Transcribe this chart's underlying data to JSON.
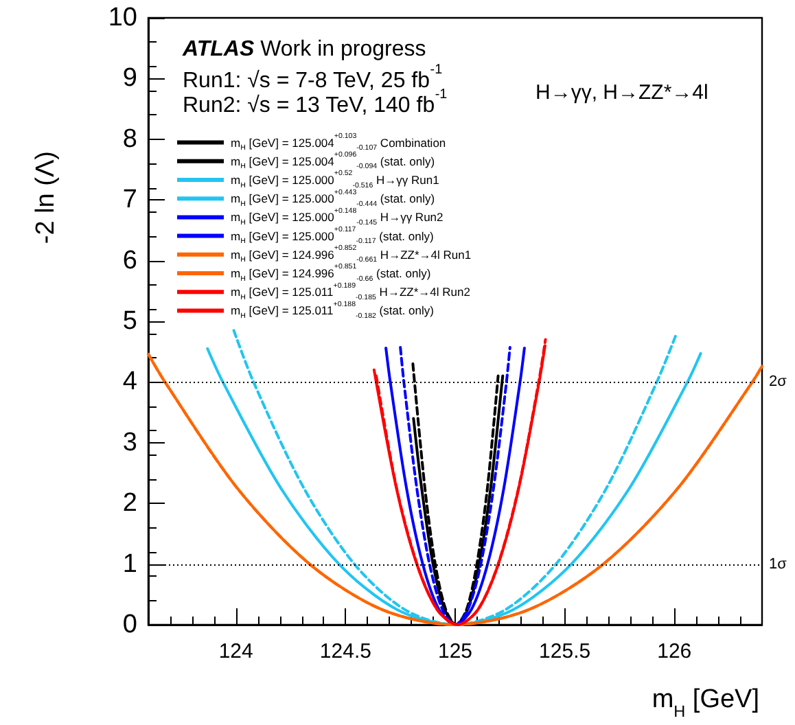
{
  "chart_data": {
    "type": "line",
    "xlabel": "m$_{H}$ [GeV]",
    "ylabel": "-2 ln (Λ)",
    "xlim": [
      123.6,
      126.4
    ],
    "ylim": [
      0,
      10
    ],
    "xticks": [
      124,
      124.5,
      125,
      125.5,
      126
    ],
    "yticks": [
      0,
      1,
      2,
      3,
      4,
      5,
      6,
      7,
      8,
      9,
      10
    ],
    "grid": false,
    "marker": "none",
    "legend": "top left",
    "annotations": [
      "ATLAS Work in progress",
      "Run1: √s = 7-8 TeV, 25 fb$^{-1}$",
      "Run2: √s = 13 TeV, 140 fb$^{-1}$",
      "H→γγ, H→ZZ*→4l"
    ],
    "ref_lines": [
      {
        "axis": "y",
        "value": 4,
        "label": "2σ",
        "color": "#000000",
        "line_style": "dotted"
      },
      {
        "axis": "y",
        "value": 1,
        "label": "1σ",
        "color": "#000000",
        "line_style": "dotted"
      }
    ],
    "series": [
      {
        "name": "m$_{H}$ [GeV] = 125.004$^{+0.103}$$_{-0.107}$ Combination",
        "color": "#000000",
        "line_style": "solid",
        "x": [
          124.81,
          124.847,
          124.899,
          124.952,
          125.004,
          125.057,
          125.109,
          125.162,
          125.214,
          125.217
        ],
        "values": [
          3.4,
          2.25,
          1,
          0.25,
          0,
          0.25,
          1,
          2.25,
          4,
          4.1
        ]
      },
      {
        "name": "m$_{H}$ [GeV] = 125.004$^{+0.096}$$_{-0.094}$ (stat. only)",
        "color": "#000000",
        "line_style": "dashed",
        "x": [
          124.807,
          124.862,
          124.909,
          124.957,
          125.004,
          125.052,
          125.099,
          125.147,
          125.196
        ],
        "values": [
          4.3,
          2.25,
          1,
          0.25,
          0,
          0.25,
          1,
          2.25,
          4.1
        ]
      },
      {
        "name": "m$_{H}$ [GeV] = 125.000$^{+0.52}$$_{-0.516}$ H→γγ Run1",
        "color": "#22c5f0",
        "line_style": "solid",
        "x": [
          123.87,
          123.94,
          124.205,
          124.47,
          124.735,
          125,
          125.265,
          125.53,
          125.795,
          126.06,
          126.12
        ],
        "values": [
          4.55,
          4,
          2.25,
          1,
          0.25,
          0,
          0.25,
          1,
          2.25,
          4,
          4.47
        ]
      },
      {
        "name": "m$_{H}$ [GeV] = 125.000$^{+0.443}$$_{-0.444}$ (stat. only)",
        "color": "#22c5f0",
        "line_style": "dashed",
        "x": [
          123.99,
          124.08,
          124.31,
          124.54,
          124.77,
          125,
          125.23,
          125.46,
          125.69,
          125.92,
          126.01
        ],
        "values": [
          4.85,
          4,
          2.25,
          1,
          0.25,
          0,
          0.25,
          1,
          2.25,
          4,
          4.8
        ]
      },
      {
        "name": "m$_{H}$ [GeV] = 125.000$^{+0.148}$$_{-0.145}$ H→γγ Run2",
        "color": "#0000ff",
        "line_style": "solid",
        "x": [
          124.684,
          124.704,
          124.778,
          124.852,
          124.926,
          125,
          125.074,
          125.148,
          125.222,
          125.296,
          125.316
        ],
        "values": [
          4.56,
          4,
          2.25,
          1,
          0.25,
          0,
          0.25,
          1,
          2.25,
          4,
          4.56
        ]
      },
      {
        "name": "m$_{H}$ [GeV] = 125.000$^{+0.117}$$_{-0.117}$ (stat. only)",
        "color": "#0000ff",
        "line_style": "dashed",
        "x": [
          124.75,
          124.766,
          124.825,
          124.883,
          124.942,
          125,
          125.058,
          125.117,
          125.175,
          125.234,
          125.25
        ],
        "values": [
          4.57,
          4,
          2.25,
          1,
          0.25,
          0,
          0.25,
          1,
          2.25,
          4,
          4.57
        ]
      },
      {
        "name": "m$_{H}$ [GeV] = 124.996$^{+0.852}$$_{-0.661}$ H→ZZ*→4l Run1",
        "color": "#ff6600",
        "line_style": "solid",
        "x": [
          123.6,
          123.676,
          124.006,
          124.336,
          124.666,
          124.996,
          125.336,
          125.676,
          126.016,
          126.356,
          126.4
        ],
        "values": [
          4.46,
          4,
          2.25,
          1,
          0.25,
          0,
          0.25,
          1,
          2.25,
          4,
          4.26
        ]
      },
      {
        "name": "m$_{H}$ [GeV] = 124.996$^{+0.851}$$_{-0.66}$ (stat. only)",
        "color": "#ff6600",
        "line_style": "dashed",
        "x": [
          123.6,
          123.676,
          124.006,
          124.336,
          124.666,
          124.996,
          125.336,
          125.676,
          126.016,
          126.356,
          126.4
        ],
        "values": [
          4.46,
          4,
          2.25,
          1,
          0.25,
          0,
          0.25,
          1,
          2.25,
          4,
          4.26
        ]
      },
      {
        "name": "m$_{H}$ [GeV] = 125.011$^{+0.189}$$_{-0.185}$ H→ZZ*→4l Run2",
        "color": "#ff0000",
        "line_style": "solid",
        "x": [
          124.63,
          124.732,
          124.825,
          124.918,
          125.011,
          125.104,
          125.197,
          125.29,
          125.383,
          125.41
        ],
        "values": [
          4.2,
          2.25,
          1,
          0.25,
          0,
          0.25,
          1,
          2.25,
          4,
          4.6
        ]
      },
      {
        "name": "m$_{H}$ [GeV] = 125.011$^{+0.188}$$_{-0.182}$ (stat. only)",
        "color": "#ff0000",
        "line_style": "dashed",
        "x": [
          124.64,
          124.733,
          124.826,
          124.918,
          125.011,
          125.104,
          125.196,
          125.289,
          125.381,
          125.412
        ],
        "values": [
          4.1,
          2.25,
          1,
          0.25,
          0,
          0.25,
          1,
          2.25,
          4,
          4.7
        ]
      }
    ]
  }
}
